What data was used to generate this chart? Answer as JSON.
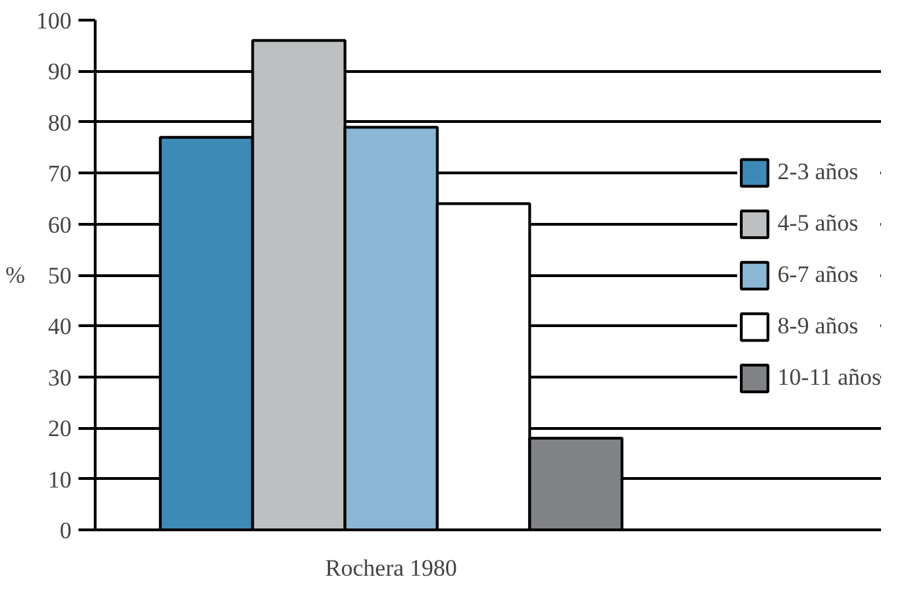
{
  "chart_data": {
    "type": "bar",
    "categories": [
      "Rochera 1980"
    ],
    "ylabel": "%",
    "ylim": [
      0,
      100
    ],
    "yticks": [
      0,
      10,
      20,
      30,
      40,
      50,
      60,
      70,
      80,
      90,
      100
    ],
    "grid": "y",
    "legend": "right",
    "series": [
      {
        "name": "2-3 años",
        "color": "#3d8ab6",
        "values": [
          77
        ]
      },
      {
        "name": "4-5 años",
        "color": "#bebfc1",
        "values": [
          96
        ]
      },
      {
        "name": "6-7 años",
        "color": "#8ab8d4",
        "values": [
          79
        ]
      },
      {
        "name": "8-9 años",
        "color": "#ffffff",
        "values": [
          64
        ]
      },
      {
        "name": "10-11 años",
        "color": "#818285",
        "values": [
          18
        ]
      }
    ]
  }
}
